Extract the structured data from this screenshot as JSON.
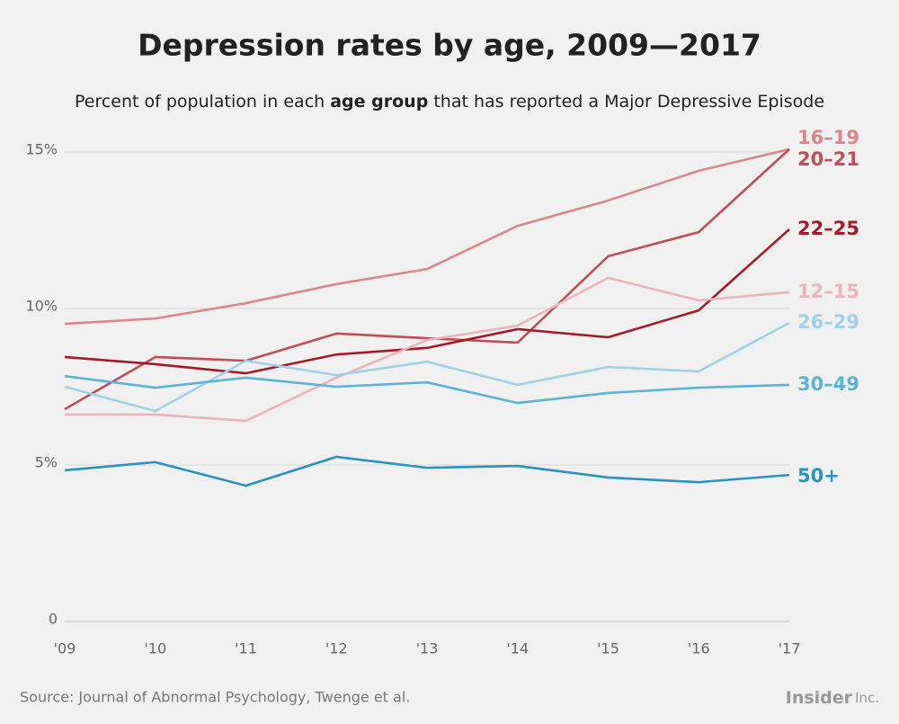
{
  "chart_data": {
    "type": "line",
    "title": "Depression rates by age, 2009—2017",
    "subtitle": [
      "Percent of population in each ",
      "age group",
      " that has reported a Major Depressive Episode"
    ],
    "categories": [
      "'09",
      "'10",
      "'11",
      "'12",
      "'13",
      "'14",
      "'15",
      "'16",
      "'17"
    ],
    "ylim": [
      0,
      15
    ],
    "yticks": [
      {
        "value": 15,
        "label": "15%"
      },
      {
        "value": 10,
        "label": "10%"
      },
      {
        "value": 5,
        "label": "5%"
      },
      0
    ],
    "grid": true,
    "series": [
      {
        "name": "16–19",
        "color": "#d9868d",
        "values": [
          9.51,
          9.68,
          10.17,
          10.78,
          11.26,
          12.64,
          13.45,
          14.4,
          15.09
        ]
      },
      {
        "name": "20–21",
        "color": "#c04e5a",
        "values": [
          6.78,
          8.45,
          8.33,
          9.2,
          9.05,
          8.91,
          11.67,
          12.44,
          15.09
        ]
      },
      {
        "name": "22–25",
        "color": "#a31b2a",
        "values": [
          8.45,
          8.22,
          7.93,
          8.53,
          8.74,
          9.34,
          9.08,
          9.94,
          12.53
        ]
      },
      {
        "name": "12–15",
        "color": "#ebb4ba",
        "values": [
          6.61,
          6.61,
          6.41,
          7.79,
          8.99,
          9.45,
          10.98,
          10.26,
          10.52
        ]
      },
      {
        "name": "26–29",
        "color": "#9fd1e7",
        "values": [
          7.5,
          6.72,
          8.33,
          7.87,
          8.3,
          7.56,
          8.13,
          7.99,
          9.54
        ]
      },
      {
        "name": "30–49",
        "color": "#5cb3d3",
        "values": [
          7.84,
          7.47,
          7.79,
          7.5,
          7.64,
          6.98,
          7.3,
          7.47,
          7.56
        ]
      },
      {
        "name": "50+",
        "color": "#2a93be",
        "values": [
          4.83,
          5.09,
          4.34,
          5.26,
          4.91,
          4.97,
          4.6,
          4.45,
          4.68
        ]
      }
    ],
    "source": "Source: Journal of Abnormal Psychology, Twenge et al.",
    "logo": [
      "Insider",
      "Inc."
    ]
  }
}
